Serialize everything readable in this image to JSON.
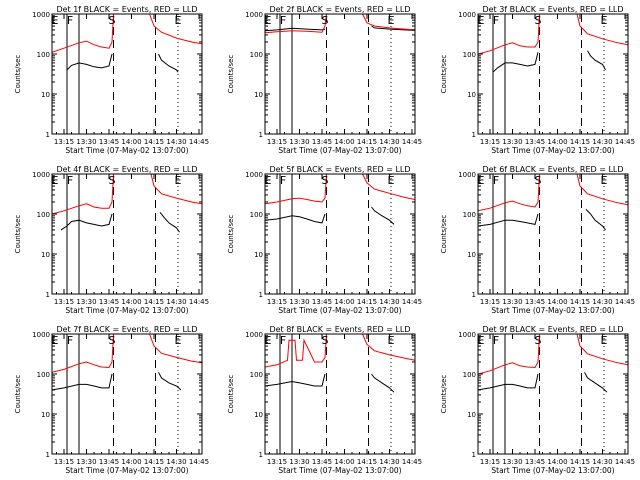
{
  "figure": {
    "xlabel": "Start Time (07-May-02 13:07:00)",
    "ylabel": "Counts/sec",
    "x_ticks": [
      "13:15",
      "13:30",
      "13:45",
      "14:00",
      "14:15",
      "14:30",
      "14:45"
    ],
    "y_ticks": [
      "1",
      "10",
      "100",
      "1000"
    ],
    "markers": [
      "E",
      "F",
      "S",
      "E"
    ],
    "colors": {
      "events": "#000000",
      "lld": "#ff0000",
      "axes": "#000000"
    }
  },
  "chart_data": [
    {
      "type": "line",
      "title": "Det 1f BLACK = Events, RED = LLD",
      "yscale": "log",
      "ylim": [
        1,
        1000
      ],
      "xlim": [
        "13:07",
        "14:47"
      ],
      "series": [
        {
          "name": "Events",
          "color": "#000000",
          "segments": [
            {
              "x": [
                "13:17",
                "13:20",
                "13:25",
                "13:30",
                "13:35",
                "13:40",
                "13:45",
                "13:47"
              ],
              "y": [
                40,
                52,
                60,
                55,
                48,
                45,
                50,
                100
              ]
            },
            {
              "x": [
                "14:18",
                "14:20",
                "14:25",
                "14:30",
                "14:31"
              ],
              "y": [
                100,
                70,
                50,
                40,
                35
              ]
            }
          ]
        },
        {
          "name": "LLD",
          "color": "#ff0000",
          "segments": [
            {
              "x": [
                "13:07",
                "13:15",
                "13:25",
                "13:30",
                "13:35",
                "13:40",
                "13:45",
                "13:47",
                "13:48"
              ],
              "y": [
                110,
                140,
                190,
                210,
                170,
                150,
                140,
                200,
                1000
              ]
            },
            {
              "x": [
                "14:12",
                "14:15",
                "14:20",
                "14:30",
                "14:40",
                "14:47"
              ],
              "y": [
                1000,
                500,
                350,
                250,
                200,
                180
              ]
            }
          ]
        }
      ]
    },
    {
      "type": "line",
      "title": "Det 2f BLACK = Events, RED = LLD",
      "yscale": "log",
      "ylim": [
        1,
        1000
      ],
      "xlim": [
        "13:07",
        "14:47"
      ],
      "series": [
        {
          "name": "Events",
          "color": "#000000",
          "segments": [
            {
              "x": [
                "13:07",
                "13:15",
                "13:25",
                "13:35",
                "13:45",
                "13:47"
              ],
              "y": [
                380,
                400,
                440,
                420,
                400,
                420
              ]
            },
            {
              "x": [
                "14:18",
                "14:20",
                "14:30",
                "14:40",
                "14:47"
              ],
              "y": [
                500,
                450,
                420,
                400,
                390
              ]
            }
          ]
        },
        {
          "name": "LLD",
          "color": "#ff0000",
          "segments": [
            {
              "x": [
                "13:07",
                "13:15",
                "13:25",
                "13:35",
                "13:45",
                "13:47",
                "13:48"
              ],
              "y": [
                340,
                360,
                380,
                370,
                350,
                500,
                1000
              ]
            },
            {
              "x": [
                "14:09",
                "14:12",
                "14:15",
                "14:20",
                "14:30",
                "14:40",
                "14:47"
              ],
              "y": [
                1000,
                1000,
                600,
                500,
                450,
                420,
                400
              ]
            }
          ]
        }
      ]
    },
    {
      "type": "line",
      "title": "Det 3f BLACK = Events, RED = LLD",
      "yscale": "log",
      "ylim": [
        1,
        1000
      ],
      "xlim": [
        "13:07",
        "14:47"
      ],
      "series": [
        {
          "name": "Events",
          "color": "#000000",
          "segments": [
            {
              "x": [
                "13:17",
                "13:20",
                "13:25",
                "13:30",
                "13:35",
                "13:40",
                "13:45",
                "13:47"
              ],
              "y": [
                35,
                45,
                60,
                60,
                55,
                50,
                55,
                110
              ]
            },
            {
              "x": [
                "14:20",
                "14:22",
                "14:25",
                "14:30",
                "14:32"
              ],
              "y": [
                120,
                90,
                70,
                55,
                40
              ]
            }
          ]
        },
        {
          "name": "LLD",
          "color": "#ff0000",
          "segments": [
            {
              "x": [
                "13:07",
                "13:15",
                "13:25",
                "13:30",
                "13:35",
                "13:40",
                "13:45",
                "13:47",
                "13:48"
              ],
              "y": [
                100,
                120,
                170,
                190,
                160,
                150,
                150,
                200,
                1000
              ]
            },
            {
              "x": [
                "14:13",
                "14:15",
                "14:20",
                "14:30",
                "14:40",
                "14:47"
              ],
              "y": [
                1000,
                500,
                320,
                240,
                190,
                170
              ]
            }
          ]
        }
      ]
    },
    {
      "type": "line",
      "title": "Det 4f BLACK = Events, RED = LLD",
      "yscale": "log",
      "ylim": [
        1,
        1000
      ],
      "xlim": [
        "13:07",
        "14:47"
      ],
      "series": [
        {
          "name": "Events",
          "color": "#000000",
          "segments": [
            {
              "x": [
                "13:13",
                "13:17",
                "13:20",
                "13:25",
                "13:30",
                "13:35",
                "13:40",
                "13:45",
                "13:47"
              ],
              "y": [
                40,
                50,
                65,
                70,
                60,
                55,
                50,
                55,
                100
              ]
            },
            {
              "x": [
                "14:19",
                "14:22",
                "14:25",
                "14:30",
                "14:32"
              ],
              "y": [
                110,
                80,
                60,
                45,
                35
              ]
            }
          ]
        },
        {
          "name": "LLD",
          "color": "#ff0000",
          "segments": [
            {
              "x": [
                "13:07",
                "13:15",
                "13:25",
                "13:30",
                "13:35",
                "13:40",
                "13:45",
                "13:47",
                "13:48"
              ],
              "y": [
                100,
                120,
                160,
                180,
                150,
                140,
                140,
                200,
                1000
              ]
            },
            {
              "x": [
                "14:13",
                "14:15",
                "14:20",
                "14:30",
                "14:40",
                "14:47"
              ],
              "y": [
                1000,
                500,
                320,
                250,
                200,
                180
              ]
            }
          ]
        }
      ]
    },
    {
      "type": "line",
      "title": "Det 5f BLACK = Events, RED = LLD",
      "yscale": "log",
      "ylim": [
        1,
        1000
      ],
      "xlim": [
        "13:07",
        "14:47"
      ],
      "series": [
        {
          "name": "Events",
          "color": "#000000",
          "segments": [
            {
              "x": [
                "13:07",
                "13:15",
                "13:25",
                "13:30",
                "13:35",
                "13:40",
                "13:45",
                "13:47"
              ],
              "y": [
                70,
                75,
                90,
                85,
                75,
                65,
                60,
                100
              ]
            },
            {
              "x": [
                "14:18",
                "14:20",
                "14:25",
                "14:30",
                "14:33"
              ],
              "y": [
                150,
                120,
                90,
                70,
                55
              ]
            }
          ]
        },
        {
          "name": "LLD",
          "color": "#ff0000",
          "segments": [
            {
              "x": [
                "13:07",
                "13:15",
                "13:25",
                "13:30",
                "13:35",
                "13:40",
                "13:45",
                "13:47",
                "13:48"
              ],
              "y": [
                180,
                200,
                240,
                250,
                230,
                210,
                200,
                250,
                1000
              ]
            },
            {
              "x": [
                "14:12",
                "14:15",
                "14:20",
                "14:30",
                "14:40",
                "14:47"
              ],
              "y": [
                1000,
                600,
                420,
                330,
                260,
                230
              ]
            }
          ]
        }
      ]
    },
    {
      "type": "line",
      "title": "Det 6f BLACK = Events, RED = LLD",
      "yscale": "log",
      "ylim": [
        1,
        1000
      ],
      "xlim": [
        "13:07",
        "14:47"
      ],
      "series": [
        {
          "name": "Events",
          "color": "#000000",
          "segments": [
            {
              "x": [
                "13:07",
                "13:15",
                "13:25",
                "13:30",
                "13:35",
                "13:40",
                "13:45",
                "13:47"
              ],
              "y": [
                50,
                55,
                70,
                70,
                65,
                60,
                55,
                100
              ]
            },
            {
              "x": [
                "14:19",
                "14:22",
                "14:25",
                "14:30",
                "14:32"
              ],
              "y": [
                130,
                100,
                70,
                50,
                40
              ]
            }
          ]
        },
        {
          "name": "LLD",
          "color": "#ff0000",
          "segments": [
            {
              "x": [
                "13:07",
                "13:15",
                "13:25",
                "13:30",
                "13:35",
                "13:40",
                "13:45",
                "13:47",
                "13:48"
              ],
              "y": [
                120,
                140,
                190,
                210,
                180,
                160,
                150,
                200,
                1000
              ]
            },
            {
              "x": [
                "14:13",
                "14:15",
                "14:20",
                "14:30",
                "14:40",
                "14:47"
              ],
              "y": [
                1000,
                500,
                320,
                240,
                190,
                170
              ]
            }
          ]
        }
      ]
    },
    {
      "type": "line",
      "title": "Det 7f BLACK = Events, RED = LLD",
      "yscale": "log",
      "ylim": [
        1,
        1000
      ],
      "xlim": [
        "13:07",
        "14:47"
      ],
      "series": [
        {
          "name": "Events",
          "color": "#000000",
          "segments": [
            {
              "x": [
                "13:07",
                "13:15",
                "13:25",
                "13:30",
                "13:35",
                "13:40",
                "13:45",
                "13:47"
              ],
              "y": [
                40,
                45,
                55,
                55,
                50,
                45,
                45,
                100
              ]
            },
            {
              "x": [
                "14:18",
                "14:20",
                "14:25",
                "14:30",
                "14:33"
              ],
              "y": [
                110,
                80,
                60,
                50,
                40
              ]
            }
          ]
        },
        {
          "name": "LLD",
          "color": "#ff0000",
          "segments": [
            {
              "x": [
                "13:07",
                "13:15",
                "13:25",
                "13:30",
                "13:35",
                "13:40",
                "13:45",
                "13:47",
                "13:48"
              ],
              "y": [
                110,
                130,
                180,
                200,
                170,
                150,
                145,
                200,
                1000
              ]
            },
            {
              "x": [
                "14:12",
                "14:15",
                "14:20",
                "14:30",
                "14:40",
                "14:47"
              ],
              "y": [
                1000,
                500,
                330,
                260,
                210,
                190
              ]
            }
          ]
        }
      ]
    },
    {
      "type": "line",
      "title": "Det 8f BLACK = Events, RED = LLD",
      "yscale": "log",
      "ylim": [
        1,
        1000
      ],
      "xlim": [
        "13:07",
        "14:47"
      ],
      "series": [
        {
          "name": "Events",
          "color": "#000000",
          "segments": [
            {
              "x": [
                "13:07",
                "13:15",
                "13:25",
                "13:30",
                "13:35",
                "13:40",
                "13:45",
                "13:47"
              ],
              "y": [
                50,
                55,
                65,
                60,
                55,
                50,
                50,
                100
              ]
            },
            {
              "x": [
                "14:18",
                "14:20",
                "14:25",
                "14:30",
                "14:33"
              ],
              "y": [
                100,
                80,
                60,
                45,
                35
              ]
            }
          ]
        },
        {
          "name": "LLD",
          "color": "#ff0000",
          "segments": [
            {
              "x": [
                "13:07",
                "13:15",
                "13:22",
                "13:23",
                "13:27",
                "13:28",
                "13:32",
                "13:33",
                "13:40",
                "13:45",
                "13:47",
                "13:48"
              ],
              "y": [
                150,
                170,
                220,
                700,
                700,
                220,
                220,
                700,
                200,
                200,
                260,
                1000
              ]
            },
            {
              "x": [
                "14:12",
                "14:15",
                "14:20",
                "14:30",
                "14:40",
                "14:47"
              ],
              "y": [
                1000,
                550,
                380,
                300,
                250,
                220
              ]
            }
          ]
        }
      ]
    },
    {
      "type": "line",
      "title": "Det 9f BLACK = Events, RED = LLD",
      "yscale": "log",
      "ylim": [
        1,
        1000
      ],
      "xlim": [
        "13:07",
        "14:47"
      ],
      "series": [
        {
          "name": "Events",
          "color": "#000000",
          "segments": [
            {
              "x": [
                "13:07",
                "13:15",
                "13:25",
                "13:30",
                "13:35",
                "13:40",
                "13:45",
                "13:47"
              ],
              "y": [
                40,
                45,
                55,
                55,
                50,
                45,
                45,
                100
              ]
            },
            {
              "x": [
                "14:18",
                "14:20",
                "14:25",
                "14:30",
                "14:33"
              ],
              "y": [
                110,
                80,
                60,
                45,
                35
              ]
            }
          ]
        },
        {
          "name": "LLD",
          "color": "#ff0000",
          "segments": [
            {
              "x": [
                "13:07",
                "13:15",
                "13:25",
                "13:30",
                "13:35",
                "13:40",
                "13:45",
                "13:47",
                "13:48"
              ],
              "y": [
                100,
                120,
                170,
                190,
                160,
                150,
                145,
                200,
                1000
              ]
            },
            {
              "x": [
                "14:13",
                "14:15",
                "14:20",
                "14:30",
                "14:40",
                "14:47"
              ],
              "y": [
                1000,
                500,
                320,
                240,
                190,
                170
              ]
            }
          ]
        }
      ]
    }
  ]
}
